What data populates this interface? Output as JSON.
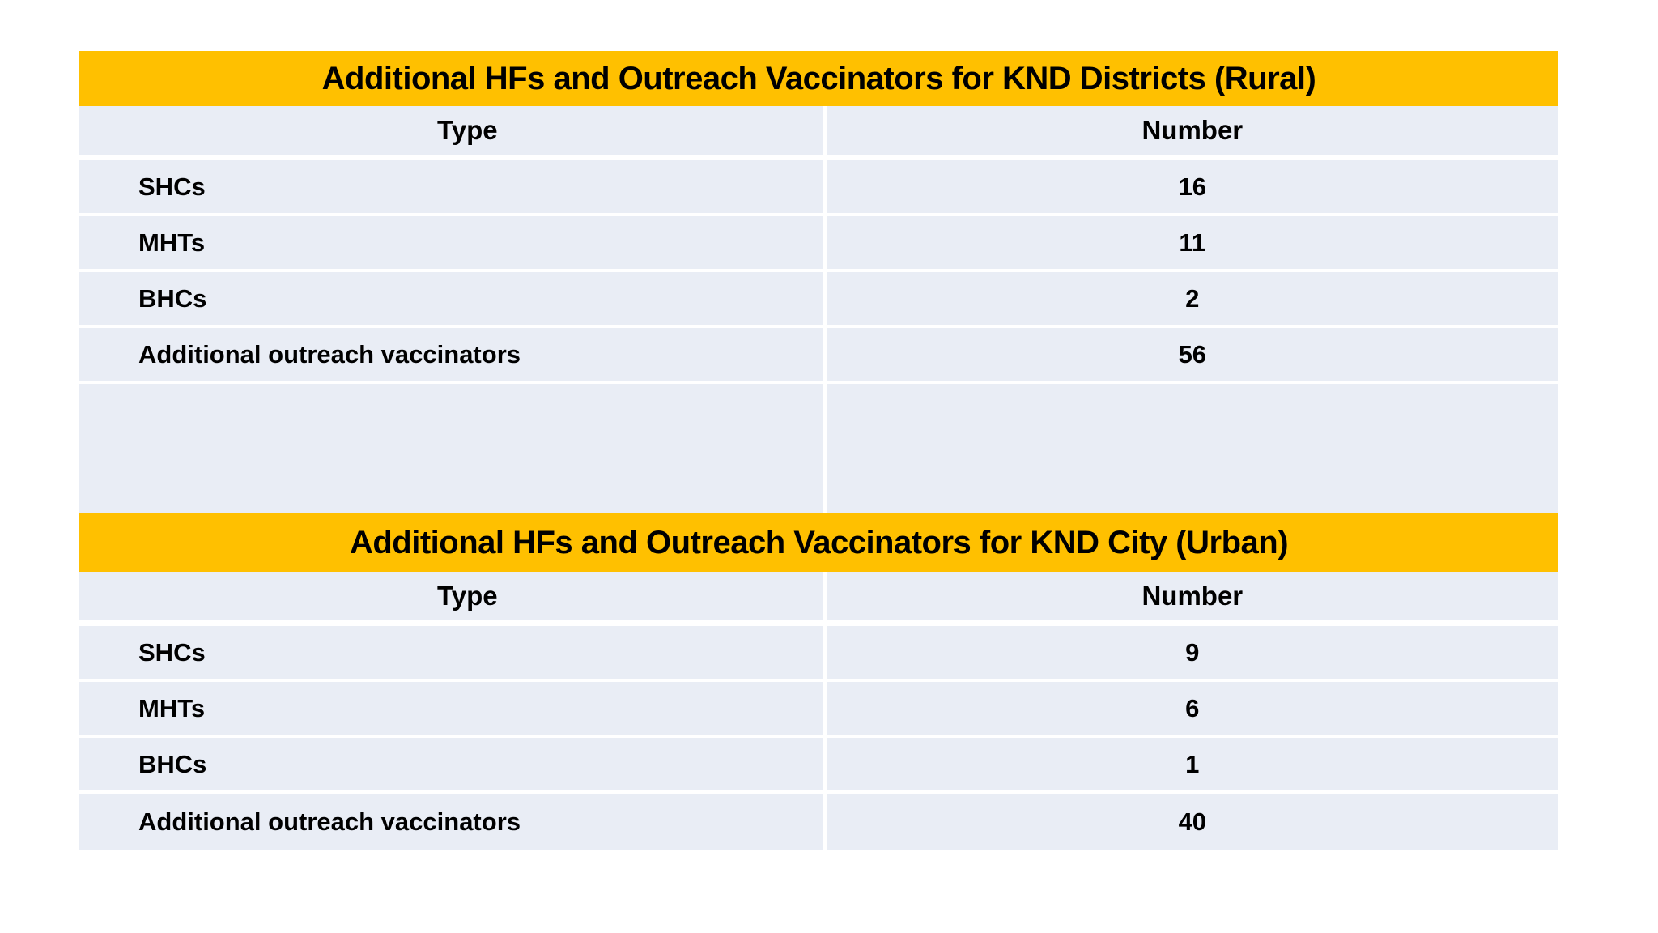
{
  "page": {
    "background": "#ffffff"
  },
  "colors": {
    "banner_fill": "#FFC000",
    "row_fill": "#E9EDF5",
    "separator": "#FFFFFF",
    "text": "#000000"
  },
  "tables": [
    {
      "title": "Additional HFs and Outreach Vaccinators for KND Districts (Rural)",
      "columns": [
        "Type",
        "Number"
      ],
      "rows": [
        {
          "type": "SHCs",
          "number": "16"
        },
        {
          "type": "MHTs",
          "number": "11"
        },
        {
          "type": "BHCs",
          "number": "2"
        },
        {
          "type": "Additional outreach vaccinators",
          "number": "56"
        },
        {
          "type": "",
          "number": ""
        }
      ]
    },
    {
      "title": "Additional HFs and Outreach Vaccinators for KND City (Urban)",
      "columns": [
        "Type",
        "Number"
      ],
      "rows": [
        {
          "type": "SHCs",
          "number": "9"
        },
        {
          "type": "MHTs",
          "number": "6"
        },
        {
          "type": "BHCs",
          "number": "1"
        },
        {
          "type": "Additional outreach vaccinators",
          "number": "40"
        }
      ]
    }
  ]
}
